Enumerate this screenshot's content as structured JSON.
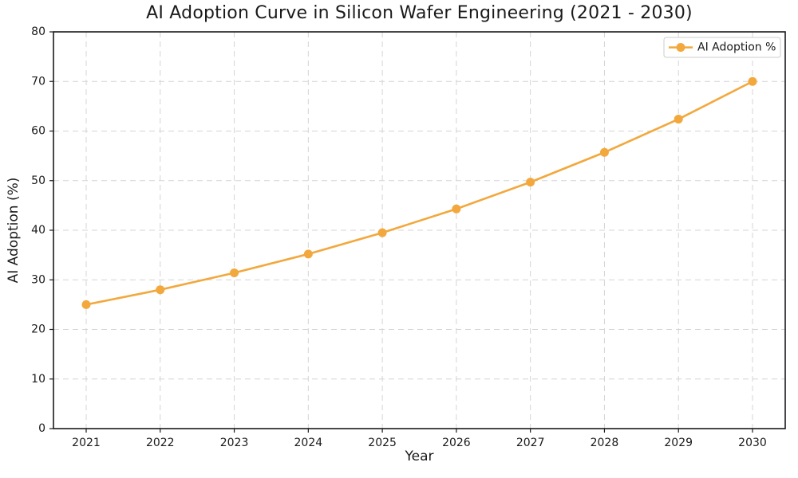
{
  "chart_data": {
    "type": "line",
    "title": "AI Adoption Curve in Silicon Wafer Engineering (2021 - 2030)",
    "xlabel": "Year",
    "ylabel": "AI Adoption (%)",
    "x": [
      2021,
      2022,
      2023,
      2024,
      2025,
      2026,
      2027,
      2028,
      2029,
      2030
    ],
    "series": [
      {
        "name": "AI Adoption %",
        "values": [
          25.0,
          28.0,
          31.4,
          35.2,
          39.5,
          44.3,
          49.7,
          55.7,
          62.4,
          70.0
        ],
        "color": "#F2A83C",
        "marker": "circle"
      }
    ],
    "ylim": [
      0,
      80
    ],
    "yticks": [
      0,
      10,
      20,
      30,
      40,
      50,
      60,
      70,
      80
    ],
    "grid": {
      "visible": true,
      "style": "dashed",
      "color": "#D4D4D4"
    },
    "legend": {
      "position": "upper-right",
      "entries": [
        "AI Adoption %"
      ]
    },
    "colors": {
      "line": "#F2A83C",
      "axis": "#1A1A1A",
      "background": "#FFFFFF",
      "legend_border": "#CCCCCC"
    }
  }
}
